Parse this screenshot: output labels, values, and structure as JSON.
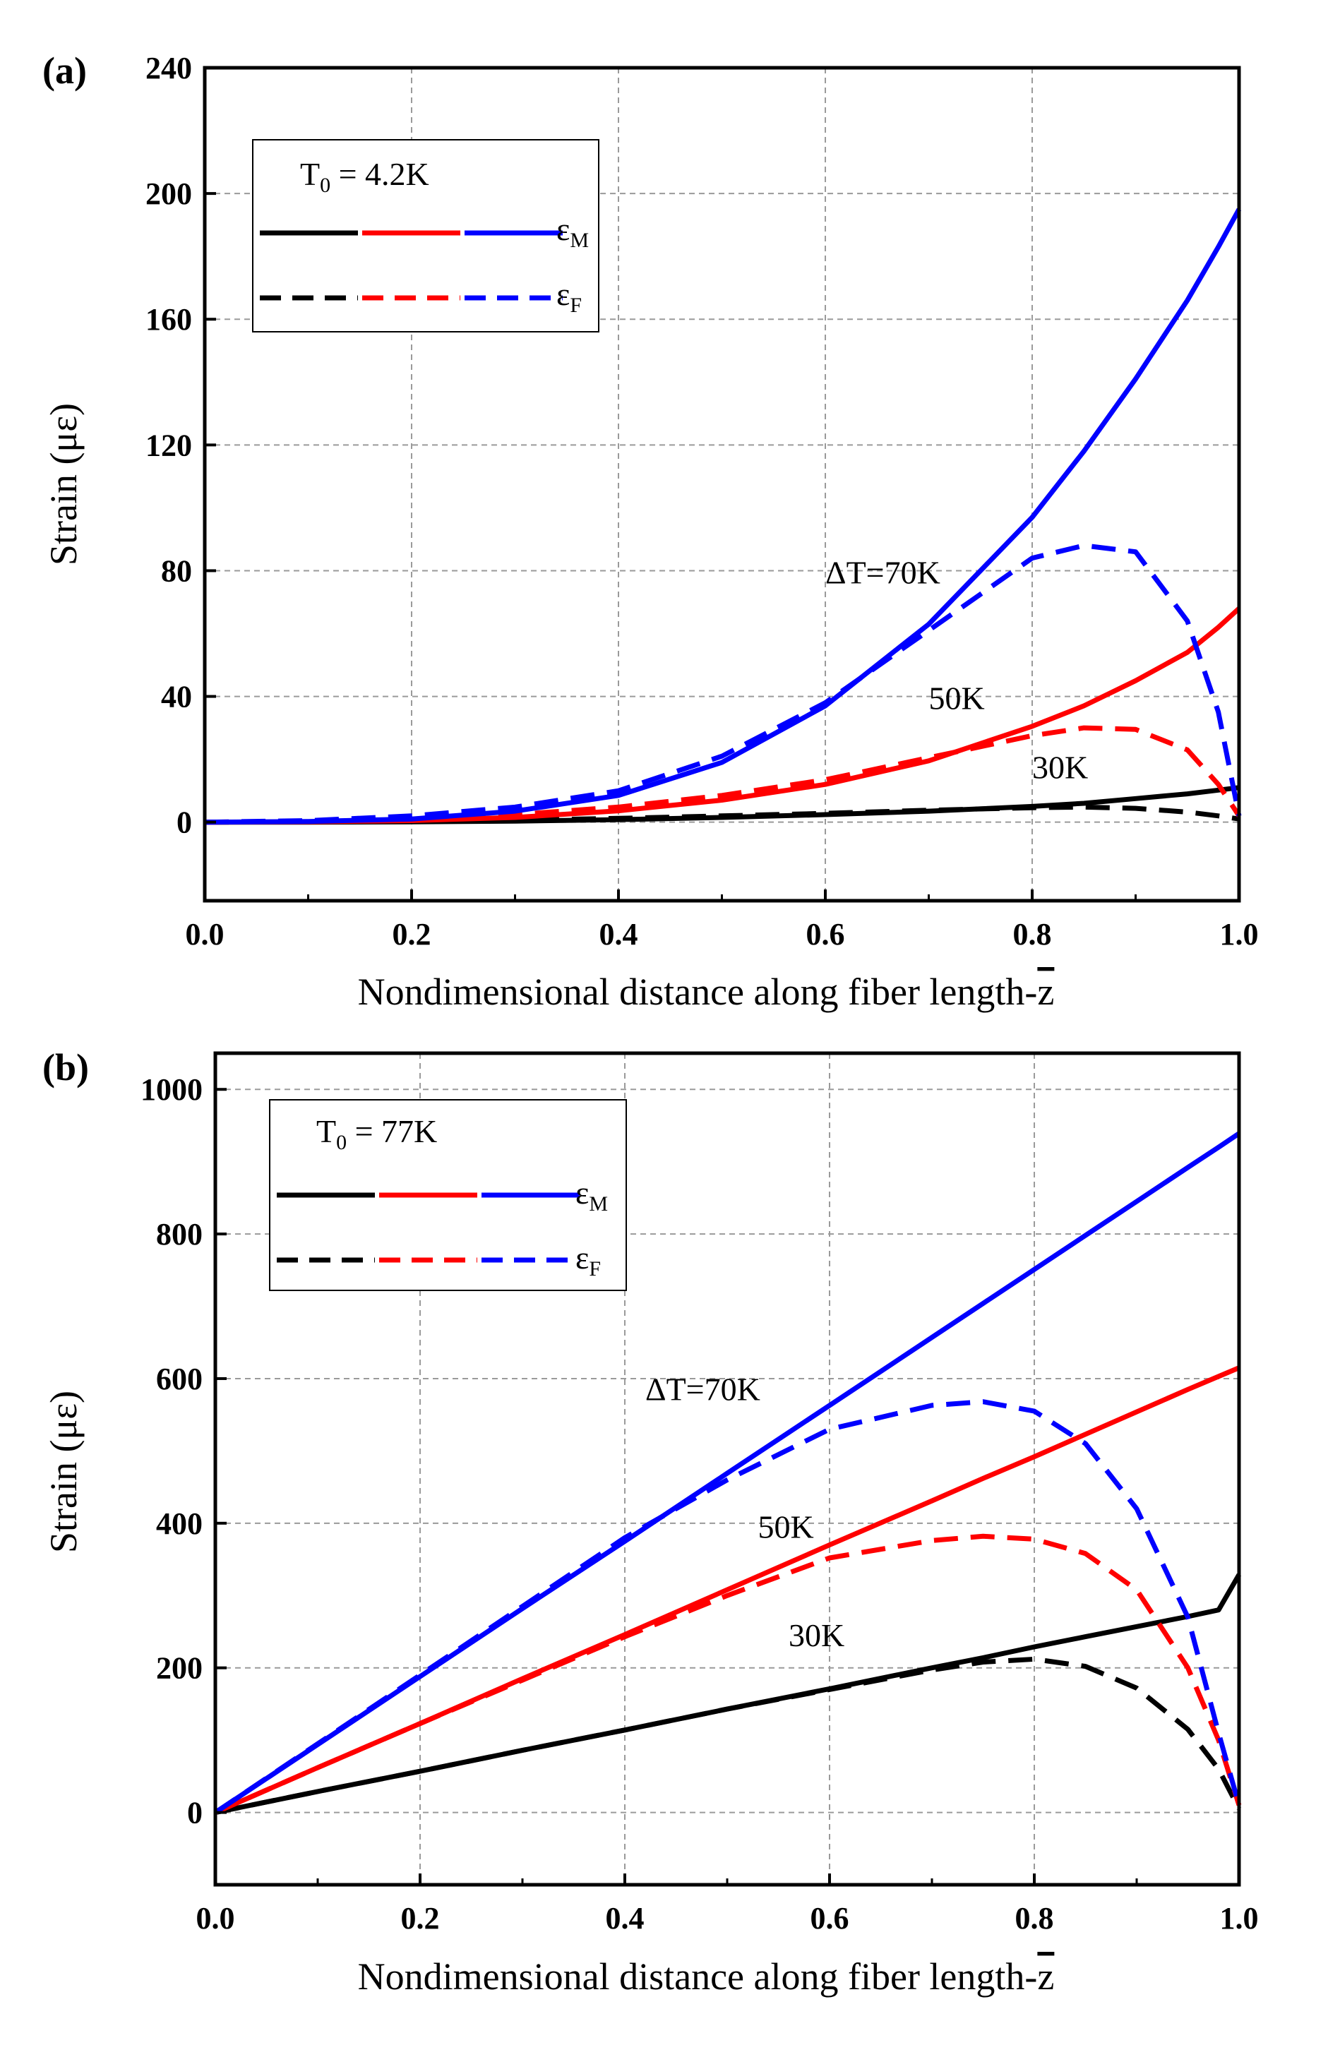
{
  "chart_data": [
    {
      "type": "line",
      "panel_label": "(a)",
      "xlabel": "Nondimensional distance along fiber length-",
      "xlabel_symbol": "z",
      "ylabel": "Strain (με)",
      "xlim": [
        0.0,
        1.0
      ],
      "ylim": [
        -25,
        240
      ],
      "xticks": [
        0.0,
        0.2,
        0.4,
        0.6,
        0.8,
        1.0
      ],
      "xtick_labels": [
        "0.0",
        "0.2",
        "0.4",
        "0.6",
        "0.8",
        "1.0"
      ],
      "yticks": [
        0,
        40,
        80,
        120,
        160,
        200,
        240
      ],
      "ytick_labels": [
        "0",
        "40",
        "80",
        "120",
        "160",
        "200",
        "240"
      ],
      "grid": true,
      "legend": {
        "title": "T",
        "title_sub": "0",
        "title_value": " = 4.2K",
        "entries": [
          {
            "symbol": "ε",
            "sub": "M",
            "style": "solid"
          },
          {
            "symbol": "ε",
            "sub": "F",
            "style": "dashed"
          }
        ],
        "colors": [
          "#000000",
          "#ff0000",
          "#0000ff"
        ]
      },
      "annotations": [
        {
          "text": "ΔT=70K",
          "x": 0.6,
          "y": 76
        },
        {
          "text": "50K",
          "x": 0.7,
          "y": 36
        },
        {
          "text": "30K",
          "x": 0.8,
          "y": 14
        }
      ],
      "x": [
        0.0,
        0.1,
        0.2,
        0.3,
        0.4,
        0.5,
        0.6,
        0.7,
        0.8,
        0.85,
        0.9,
        0.95,
        0.98,
        1.0
      ],
      "series": [
        {
          "name": "30K εM",
          "color": "#000000",
          "style": "solid",
          "values": [
            0,
            0,
            0.1,
            0.3,
            0.8,
            1.5,
            2.4,
            3.5,
            5.0,
            6.0,
            7.5,
            9.0,
            10.2,
            11
          ]
        },
        {
          "name": "30K εF",
          "color": "#000000",
          "style": "dashed",
          "values": [
            0,
            0.1,
            0.3,
            0.6,
            1.2,
            2.0,
            2.8,
            3.8,
            4.6,
            4.8,
            4.4,
            3.2,
            2.0,
            1
          ]
        },
        {
          "name": "50K εM",
          "color": "#ff0000",
          "style": "solid",
          "values": [
            0,
            0.1,
            0.5,
            1.5,
            3.6,
            7.0,
            12,
            19.5,
            30.5,
            37,
            45,
            54,
            62,
            68
          ]
        },
        {
          "name": "50K εF",
          "color": "#ff0000",
          "style": "dashed",
          "values": [
            0,
            0.3,
            1.0,
            2.4,
            4.8,
            8.5,
            13.5,
            20.5,
            27.5,
            30,
            29.5,
            23,
            12,
            2
          ]
        },
        {
          "name": "70K εM",
          "color": "#0000ff",
          "style": "solid",
          "values": [
            0,
            0.2,
            1.0,
            3.5,
            8.5,
            19,
            37,
            63,
            97,
            118,
            141,
            166,
            183,
            195
          ]
        },
        {
          "name": "70K εF",
          "color": "#0000ff",
          "style": "dashed",
          "values": [
            0,
            0.5,
            2.0,
            4.8,
            10,
            21,
            38,
            61,
            84,
            88,
            86,
            64,
            35,
            2
          ]
        }
      ]
    },
    {
      "type": "line",
      "panel_label": "(b)",
      "xlabel": "Nondimensional distance along fiber length-",
      "xlabel_symbol": "z",
      "ylabel": "Strain (με)",
      "xlim": [
        0.0,
        1.0
      ],
      "ylim": [
        -100,
        1050
      ],
      "xticks": [
        0.0,
        0.2,
        0.4,
        0.6,
        0.8,
        1.0
      ],
      "xtick_labels": [
        "0.0",
        "0.2",
        "0.4",
        "0.6",
        "0.8",
        "1.0"
      ],
      "yticks": [
        0,
        200,
        400,
        600,
        800,
        1000
      ],
      "ytick_labels": [
        "0",
        "200",
        "400",
        "600",
        "800",
        "1000"
      ],
      "grid": true,
      "legend": {
        "title": "T",
        "title_sub": "0",
        "title_value": " = 77K",
        "entries": [
          {
            "symbol": "ε",
            "sub": "M",
            "style": "solid"
          },
          {
            "symbol": "ε",
            "sub": "F",
            "style": "dashed"
          }
        ],
        "colors": [
          "#000000",
          "#ff0000",
          "#0000ff"
        ]
      },
      "annotations": [
        {
          "text": "ΔT=70K",
          "x": 0.42,
          "y": 570
        },
        {
          "text": "50K",
          "x": 0.53,
          "y": 380
        },
        {
          "text": "30K",
          "x": 0.56,
          "y": 230
        }
      ],
      "x": [
        0.0,
        0.1,
        0.2,
        0.3,
        0.4,
        0.5,
        0.6,
        0.7,
        0.75,
        0.8,
        0.85,
        0.9,
        0.95,
        0.98,
        1.0
      ],
      "series": [
        {
          "name": "30K εM",
          "color": "#000000",
          "style": "solid",
          "values": [
            0,
            29,
            57,
            86,
            114,
            143,
            171,
            200,
            214,
            229,
            243,
            257,
            271,
            280,
            329
          ]
        },
        {
          "name": "30K εF",
          "color": "#000000",
          "style": "dashed",
          "values": [
            0,
            29,
            57,
            86,
            114,
            143,
            170,
            197,
            208,
            212,
            202,
            172,
            115,
            60,
            5
          ]
        },
        {
          "name": "50K εM",
          "color": "#ff0000",
          "style": "solid",
          "values": [
            0,
            62,
            123,
            185,
            246,
            308,
            370,
            431,
            462,
            492,
            523,
            554,
            585,
            603,
            615
          ]
        },
        {
          "name": "50K εF",
          "color": "#ff0000",
          "style": "dashed",
          "values": [
            0,
            62,
            123,
            183,
            243,
            300,
            352,
            376,
            382,
            378,
            358,
            308,
            200,
            100,
            10
          ]
        },
        {
          "name": "70K εM",
          "color": "#0000ff",
          "style": "solid",
          "values": [
            0,
            94,
            188,
            282,
            375,
            469,
            563,
            657,
            704,
            751,
            798,
            845,
            892,
            920,
            939
          ]
        },
        {
          "name": "70K εF",
          "color": "#0000ff",
          "style": "dashed",
          "values": [
            0,
            95,
            190,
            285,
            380,
            460,
            530,
            563,
            568,
            555,
            510,
            420,
            270,
            110,
            10
          ]
        }
      ]
    }
  ]
}
